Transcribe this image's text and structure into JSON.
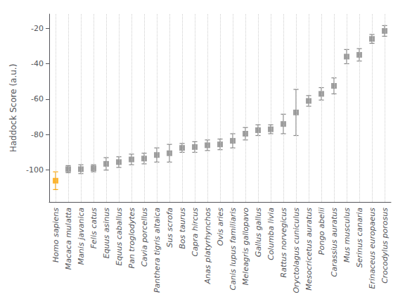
{
  "chart_data": {
    "type": "scatter",
    "categories": [
      "Homo sapiens",
      "Macaca mulatta",
      "Manis javanica",
      "Felis catus",
      "Equus asinus",
      "Equus caballus",
      "Pan troglodytes",
      "Cavia porcellus",
      "Panthera tigris altaica",
      "Sus scrofa",
      "Bos taurus",
      "Capra hircus",
      "Anas platyrhynchos",
      "Ovis aries",
      "Canis lupus familiaris",
      "Meleagris gallopavo",
      "Gallus gallus",
      "Columba livia",
      "Rattus norvegicus",
      "Oryctolagus cuniculus",
      "Mesocricetus auratus",
      "Pongo abelii",
      "Carassius auratus",
      "Mus musculus",
      "Serinus canaria",
      "Erinaceus europaeus",
      "Crocodylus porosus"
    ],
    "values": [
      -106.0,
      -99.5,
      -99.5,
      -99.0,
      -96.5,
      -95.5,
      -94.0,
      -93.5,
      -91.5,
      -90.5,
      -87.5,
      -87.0,
      -86.0,
      -85.5,
      -83.5,
      -79.5,
      -77.5,
      -77.0,
      -74.0,
      -67.5,
      -61.0,
      -57.0,
      -52.5,
      -36.0,
      -35.0,
      -26.0,
      -21.5
    ],
    "errors_neg": [
      5.0,
      2.0,
      2.5,
      2.0,
      3.5,
      3.0,
      3.0,
      3.0,
      4.0,
      5.0,
      2.5,
      3.0,
      3.0,
      3.0,
      4.0,
      3.5,
      3.0,
      2.5,
      5.5,
      13.0,
      3.0,
      3.5,
      4.5,
      4.0,
      3.5,
      2.5,
      3.0
    ],
    "errors_pos": [
      5.0,
      2.0,
      2.5,
      2.0,
      3.5,
      3.0,
      3.0,
      3.0,
      4.0,
      5.0,
      2.5,
      3.0,
      3.0,
      3.0,
      4.0,
      3.5,
      3.0,
      2.5,
      5.5,
      13.0,
      3.0,
      3.5,
      4.5,
      4.0,
      3.5,
      2.5,
      3.0
    ],
    "colors": [
      "#FFA500",
      "#888888",
      "#888888",
      "#888888",
      "#888888",
      "#888888",
      "#888888",
      "#888888",
      "#888888",
      "#888888",
      "#888888",
      "#888888",
      "#888888",
      "#888888",
      "#888888",
      "#888888",
      "#888888",
      "#888888",
      "#888888",
      "#888888",
      "#888888",
      "#888888",
      "#888888",
      "#888888",
      "#888888",
      "#888888",
      "#888888"
    ],
    "marker": "square",
    "ylabel": "Haddock Score (a.u.)",
    "ylim": [
      -118,
      -12
    ],
    "yticks": [
      -20,
      -40,
      -60,
      -80,
      -100
    ],
    "grid": true
  }
}
